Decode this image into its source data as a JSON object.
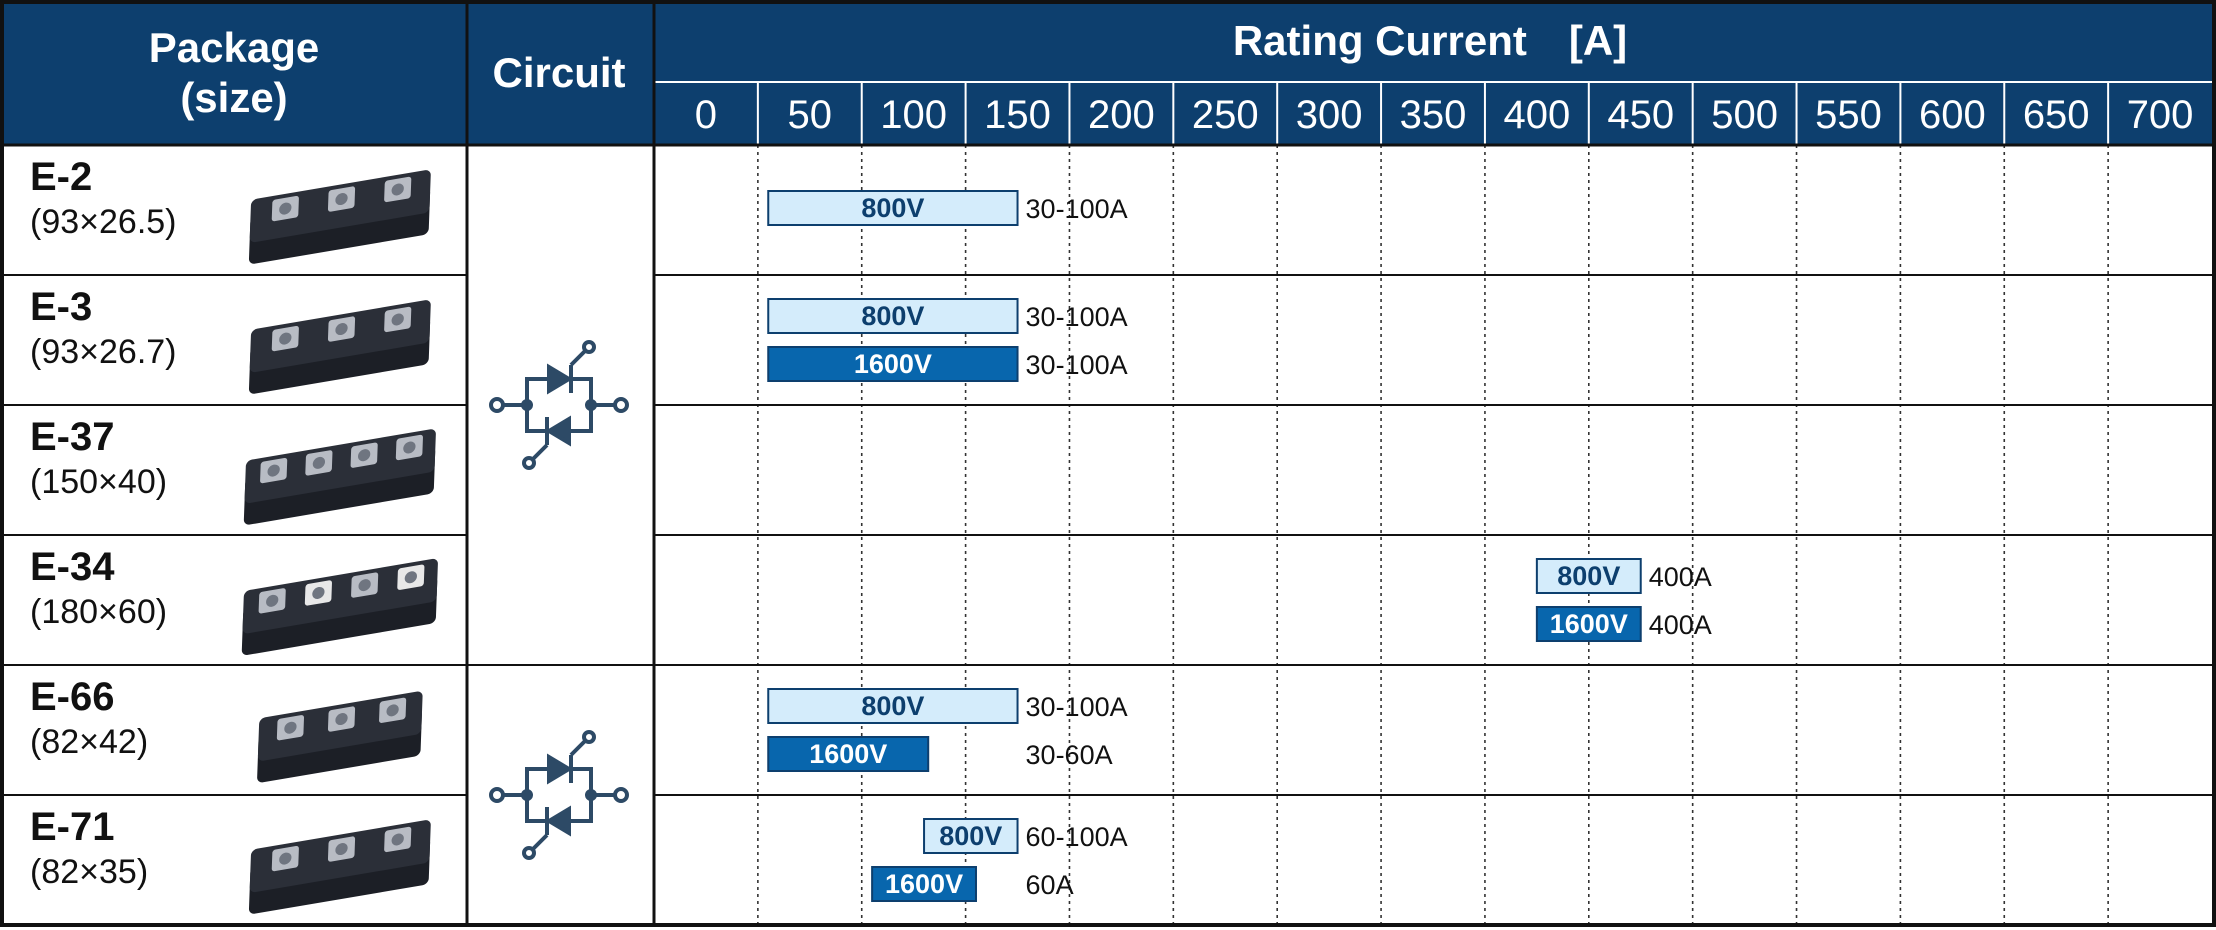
{
  "header": {
    "package_line1": "Package",
    "package_line2": "(size)",
    "circuit": "Circuit",
    "rating": "Rating Current　[A]"
  },
  "colors": {
    "header_bg": "#0d3f6e",
    "bar_800v_fill": "#d4ecfb",
    "bar_800v_text": "#0d3f6e",
    "bar_1600v_fill": "#0866ad",
    "bar_1600v_text": "#ffffff",
    "module_body": "#2b2f38"
  },
  "chart_data": {
    "type": "bar",
    "orientation": "horizontal",
    "xlabel": "Rating Current　[A]",
    "xlim": [
      0,
      700
    ],
    "x_ticks": [
      "0",
      "50",
      "100",
      "150",
      "200",
      "250",
      "300",
      "350",
      "400",
      "450",
      "500",
      "550",
      "600",
      "650",
      "700"
    ],
    "grid": "vertical-dotted",
    "packages": [
      {
        "name": "E-2",
        "size": "(93×26.5)",
        "image": "module-icon",
        "circuit_group": 0,
        "bars": [
          {
            "label": "800V",
            "class": "800V",
            "start": 30,
            "end": 150,
            "range": "30-100A"
          }
        ]
      },
      {
        "name": "E-3",
        "size": "(93×26.7)",
        "image": "module-icon",
        "circuit_group": 0,
        "bars": [
          {
            "label": "800V",
            "class": "800V",
            "start": 30,
            "end": 150,
            "range": "30-100A"
          },
          {
            "label": "1600V",
            "class": "1600V",
            "start": 30,
            "end": 150,
            "range": "30-100A"
          }
        ]
      },
      {
        "name": "E-37",
        "size": "(150×40)",
        "image": "module-icon",
        "circuit_group": 0,
        "bars": []
      },
      {
        "name": "E-34",
        "size": "(180×60)",
        "image": "module-icon",
        "circuit_group": 0,
        "bars": [
          {
            "label": "800V",
            "class": "800V",
            "start": 400,
            "end": 450,
            "range": "400A"
          },
          {
            "label": "1600V",
            "class": "1600V",
            "start": 400,
            "end": 450,
            "range": "400A"
          }
        ]
      },
      {
        "name": "E-66",
        "size": "(82×42)",
        "image": "module-icon",
        "circuit_group": 1,
        "bars": [
          {
            "label": "800V",
            "class": "800V",
            "start": 30,
            "end": 150,
            "range": "30-100A"
          },
          {
            "label": "1600V",
            "class": "1600V",
            "start": 30,
            "end": 107,
            "range": "30-60A"
          }
        ]
      },
      {
        "name": "E-71",
        "size": "(82×35)",
        "image": "module-icon",
        "circuit_group": 1,
        "bars": [
          {
            "label": "800V",
            "class": "800V",
            "start": 105,
            "end": 150,
            "range": "60-100A"
          },
          {
            "label": "1600V",
            "class": "1600V",
            "start": 80,
            "end": 130,
            "range": "60A"
          }
        ]
      }
    ],
    "circuits": [
      {
        "icon": "thyristor-pair-circuit-icon",
        "rows": [
          0,
          3
        ]
      },
      {
        "icon": "thyristor-pair-circuit-icon",
        "rows": [
          4,
          5
        ]
      }
    ]
  }
}
